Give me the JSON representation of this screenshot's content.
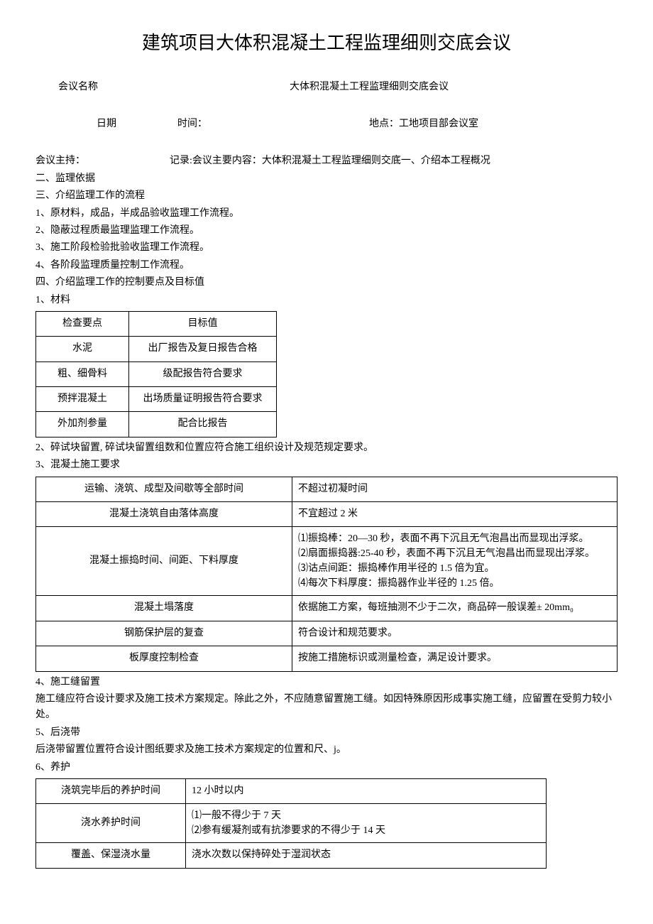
{
  "title": "建筑项目大体积混凝土工程监理细则交底会议",
  "meeting_name_label": "会议名称",
  "meeting_name_value": "大体积混凝土工程监理细则交底会议",
  "date_label": "日期",
  "time_label": "时间：",
  "place_label": "地点：工地项目部会议室",
  "host_line": "会议主持：　　　　　　　　　记录:会议主要内容：大体积混凝土工程监理细则交底一、介绍本工程概况",
  "lines_before_table1": [
    "二、监理依据",
    "三、介绍监理工作的流程",
    "1、原材料，成品，半成品验收监理工作流程。",
    "2、隐蔽过程质最监理监理工作流程。",
    "3、施工阶段检验批验收监理工作流程。",
    "4、各阶段监理质量控制工作流程。",
    "四、介绍监理工作的控制要点及目标值",
    "1、材料"
  ],
  "table1": {
    "rows": [
      [
        "检查要点",
        "目标值"
      ],
      [
        "水泥",
        "出厂报告及复日报告合格"
      ],
      [
        "粗、细骨料",
        "级配报告符合要求"
      ],
      [
        "预拌混凝土",
        "出场质量证明报告符合要求"
      ],
      [
        "外加剂参量",
        "配合比报告"
      ]
    ]
  },
  "lines_between_t1_t2": [
    "2、碎试块留置, 碎试块留置组数和位置应符合施工组织设计及规范规定要求。",
    "3、混凝土施工要求"
  ],
  "table2": {
    "rows": [
      {
        "c1": "运输、浇筑、成型及间歇等全部时间",
        "c2": "不超过初凝时间",
        "c2_centered": true
      },
      {
        "c1": "混凝土浇筑自由落体高度",
        "c2": "不宜超过 2 米",
        "c2_centered": true
      },
      {
        "c1": "混凝土振捣时间、间距、下料厚度",
        "c2": "⑴振捣棒：20—30 秒，表面不再下沉且无气泡昌出而显现出浮浆。\n⑵扇面振捣器:25-40 秒，表面不再下沉且无气泡昌出而显现出浮浆。\n⑶诂点间距：振捣棒作用半径的 1.5 倍为宜。\n⑷每次下料厚度：振捣器作业半径的 1.25 倍。",
        "c2_centered": false,
        "multi": true
      },
      {
        "c1": "混凝土塌落度",
        "c2": "依据施工方案，每班抽测不少于二次，商品碎一般误差± 20mm₀",
        "c2_centered": false
      },
      {
        "c1": "钢筋保护层的复查",
        "c2": "符合设计和规范要求。",
        "c2_centered": true
      },
      {
        "c1": "板厚度控制检查",
        "c2": "按施工措施标识或测量检查，满足设计要求。",
        "c2_centered": true
      }
    ]
  },
  "lines_between_t2_t3": [
    "4、施工缝留置",
    "施工缝应符合设计要求及施工技术方案规定。除此之外，不应随意留置施工缝。如因特殊原因形成事实施工缝，应留置在受剪力较小处。",
    "5、后浇带",
    "后浇带留置位置符合设计图纸要求及施工技术方案规定的位置和尺、j。",
    "6、养护"
  ],
  "table3": {
    "rows": [
      {
        "c1": "浇筑完毕后的养护时间",
        "c2": "12 小时以内",
        "c2_centered": true
      },
      {
        "c1": "浇水养护时间",
        "c2": "⑴一般不得少于 7 天\n⑵参有缓凝剂或有抗渗要求的不得少于 14 天",
        "c2_centered": false,
        "multi": true
      },
      {
        "c1": "覆盖、保湿浇水量",
        "c2": "浇水次数以保持碎处于湿润状态",
        "c2_centered": true
      }
    ]
  }
}
